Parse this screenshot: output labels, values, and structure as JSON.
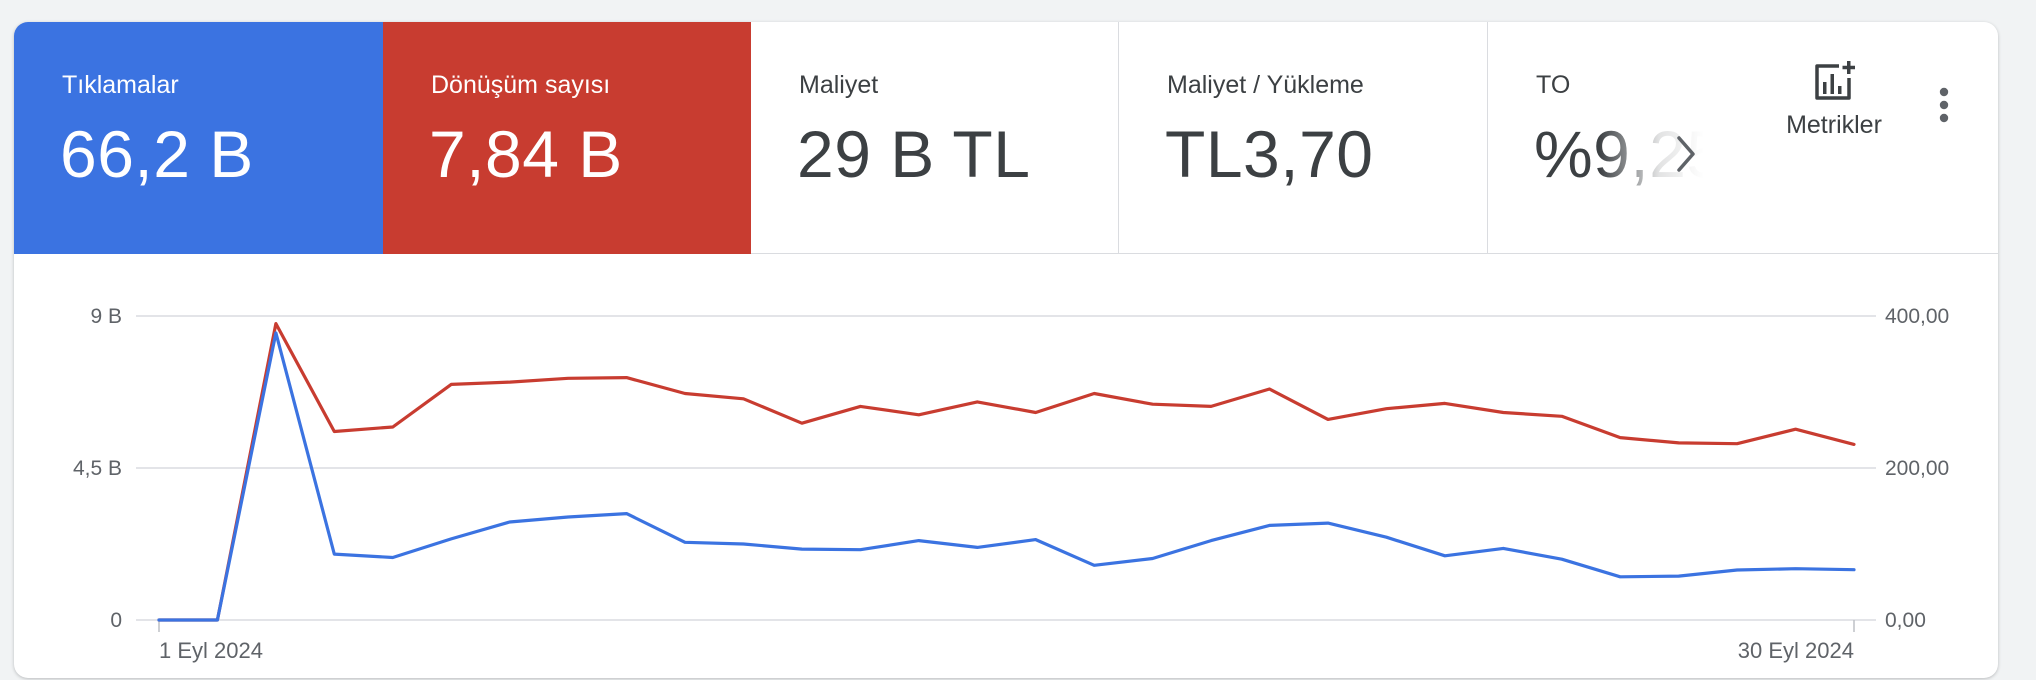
{
  "tiles": [
    {
      "label": "Tıklamalar",
      "value": "66,2 B",
      "color": "#3b73e1"
    },
    {
      "label": "Dönüşüm sayısı",
      "value": "7,84 B",
      "color": "#c83c30"
    },
    {
      "label": "Maliyet",
      "value": "29 B TL"
    },
    {
      "label": "Maliyet / Yükleme",
      "value": "TL3,70"
    },
    {
      "label": "TO",
      "value": "%9,25"
    }
  ],
  "toolbar": {
    "metrics_label": "Metrikler",
    "metrics_icon": "add-chart-icon",
    "more_icon": "more-vert-icon",
    "next_icon": "chevron-right-icon"
  },
  "chart_data": {
    "type": "line",
    "x": [
      "1 Eyl 2024",
      "2 Eyl 2024",
      "3 Eyl 2024",
      "4 Eyl 2024",
      "5 Eyl 2024",
      "6 Eyl 2024",
      "7 Eyl 2024",
      "8 Eyl 2024",
      "9 Eyl 2024",
      "10 Eyl 2024",
      "11 Eyl 2024",
      "12 Eyl 2024",
      "13 Eyl 2024",
      "14 Eyl 2024",
      "15 Eyl 2024",
      "16 Eyl 2024",
      "17 Eyl 2024",
      "18 Eyl 2024",
      "19 Eyl 2024",
      "20 Eyl 2024",
      "21 Eyl 2024",
      "22 Eyl 2024",
      "23 Eyl 2024",
      "24 Eyl 2024",
      "25 Eyl 2024",
      "26 Eyl 2024",
      "27 Eyl 2024",
      "28 Eyl 2024",
      "29 Eyl 2024",
      "30 Eyl 2024"
    ],
    "x_tick_labels": [
      "1 Eyl 2024",
      "30 Eyl 2024"
    ],
    "series": [
      {
        "name": "Tıklamalar",
        "axis": "left",
        "color": "#3b73e1",
        "values": [
          0,
          0,
          8500,
          1950,
          1850,
          2400,
          2900,
          3050,
          3150,
          2300,
          2250,
          2100,
          2080,
          2350,
          2150,
          2380,
          1620,
          1820,
          2350,
          2800,
          2870,
          2450,
          1900,
          2120,
          1800,
          1280,
          1300,
          1480,
          1520,
          1490
        ]
      },
      {
        "name": "Dönüşüm sayısı",
        "axis": "right",
        "color": "#c83c30",
        "values": [
          0,
          0,
          390,
          248,
          254,
          310,
          313,
          318,
          319,
          298,
          291,
          259,
          281,
          270,
          287,
          273,
          298,
          284,
          281,
          304,
          264,
          278,
          285,
          273,
          268,
          240,
          233,
          232,
          251,
          231
        ]
      }
    ],
    "y_left": {
      "ticks": [
        "0",
        "4,5 B",
        "9 B"
      ],
      "range": [
        0,
        9000
      ]
    },
    "y_right": {
      "ticks": [
        "0,00",
        "200,00",
        "400,00"
      ],
      "range": [
        0,
        400
      ]
    },
    "grid": true
  }
}
